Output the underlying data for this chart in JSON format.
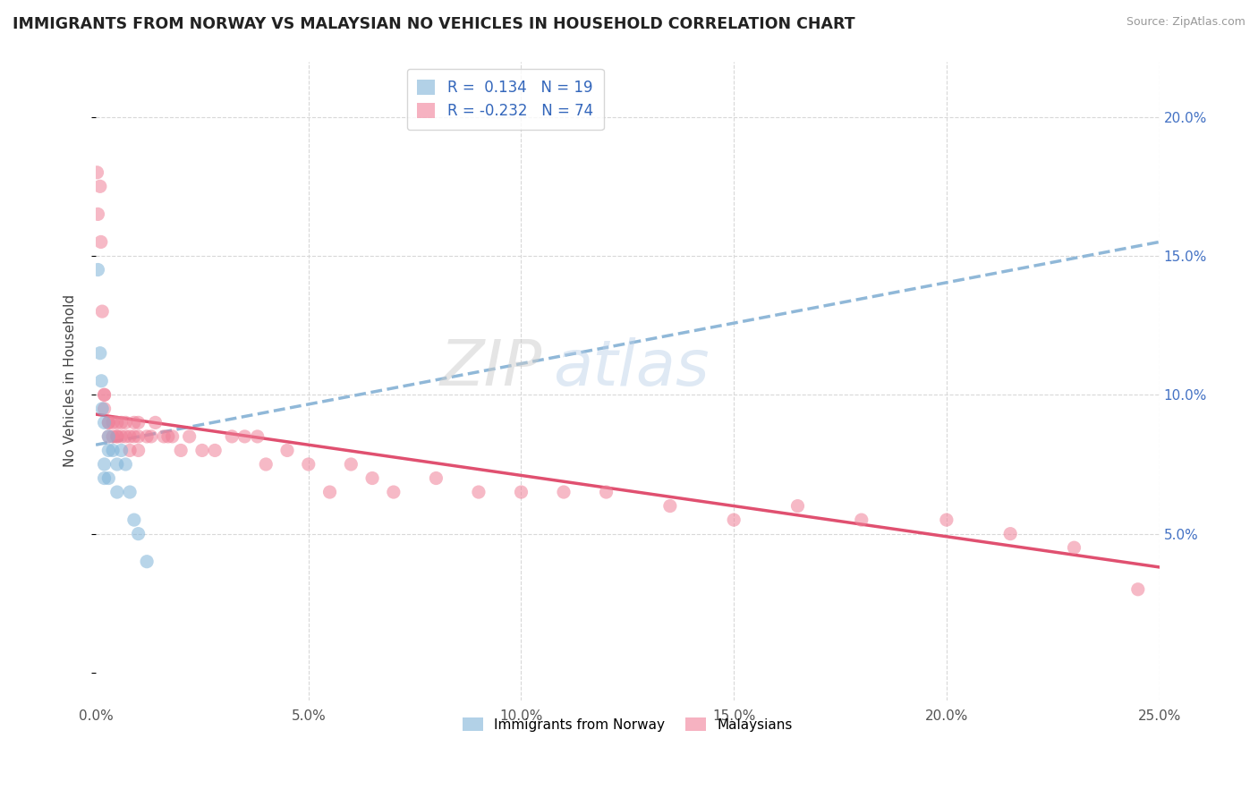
{
  "title": "IMMIGRANTS FROM NORWAY VS MALAYSIAN NO VEHICLES IN HOUSEHOLD CORRELATION CHART",
  "source": "Source: ZipAtlas.com",
  "ylabel": "No Vehicles in Household",
  "xlim": [
    0.0,
    0.25
  ],
  "ylim": [
    -0.01,
    0.22
  ],
  "x_ticks": [
    0.0,
    0.05,
    0.1,
    0.15,
    0.2,
    0.25
  ],
  "x_tick_labels": [
    "0.0%",
    "5.0%",
    "10.0%",
    "15.0%",
    "20.0%",
    "25.0%"
  ],
  "y_ticks_right": [
    0.05,
    0.1,
    0.15,
    0.2
  ],
  "y_tick_labels_right": [
    "5.0%",
    "10.0%",
    "15.0%",
    "20.0%"
  ],
  "norway_color": "#7fb3d8",
  "malaysia_color": "#f08098",
  "norway_trend_color": "#90b8d8",
  "malaysia_trend_color": "#e05070",
  "background_color": "#ffffff",
  "grid_color": "#d8d8d8",
  "norway_scatter_x": [
    0.0005,
    0.001,
    0.0013,
    0.0015,
    0.002,
    0.002,
    0.002,
    0.003,
    0.003,
    0.003,
    0.004,
    0.005,
    0.005,
    0.006,
    0.007,
    0.008,
    0.009,
    0.01,
    0.012
  ],
  "norway_scatter_y": [
    0.145,
    0.115,
    0.105,
    0.095,
    0.09,
    0.075,
    0.07,
    0.085,
    0.08,
    0.07,
    0.08,
    0.075,
    0.065,
    0.08,
    0.075,
    0.065,
    0.055,
    0.05,
    0.04
  ],
  "malaysia_scatter_x": [
    0.0003,
    0.0005,
    0.001,
    0.0012,
    0.0015,
    0.002,
    0.002,
    0.002,
    0.003,
    0.003,
    0.003,
    0.004,
    0.004,
    0.005,
    0.005,
    0.005,
    0.006,
    0.006,
    0.007,
    0.007,
    0.008,
    0.008,
    0.009,
    0.009,
    0.01,
    0.01,
    0.01,
    0.012,
    0.013,
    0.014,
    0.016,
    0.017,
    0.018,
    0.02,
    0.022,
    0.025,
    0.028,
    0.032,
    0.035,
    0.038,
    0.04,
    0.045,
    0.05,
    0.055,
    0.06,
    0.065,
    0.07,
    0.08,
    0.09,
    0.1,
    0.11,
    0.12,
    0.135,
    0.15,
    0.165,
    0.18,
    0.2,
    0.215,
    0.23,
    0.245
  ],
  "malaysia_scatter_y": [
    0.18,
    0.165,
    0.175,
    0.155,
    0.13,
    0.1,
    0.1,
    0.095,
    0.09,
    0.085,
    0.09,
    0.09,
    0.085,
    0.09,
    0.085,
    0.085,
    0.09,
    0.085,
    0.09,
    0.085,
    0.085,
    0.08,
    0.09,
    0.085,
    0.09,
    0.085,
    0.08,
    0.085,
    0.085,
    0.09,
    0.085,
    0.085,
    0.085,
    0.08,
    0.085,
    0.08,
    0.08,
    0.085,
    0.085,
    0.085,
    0.075,
    0.08,
    0.075,
    0.065,
    0.075,
    0.07,
    0.065,
    0.07,
    0.065,
    0.065,
    0.065,
    0.065,
    0.06,
    0.055,
    0.06,
    0.055,
    0.055,
    0.05,
    0.045,
    0.03
  ],
  "norway_trend_x0": 0.0,
  "norway_trend_y0": 0.082,
  "norway_trend_x1": 0.25,
  "norway_trend_y1": 0.155,
  "malaysia_trend_x0": 0.0,
  "malaysia_trend_y0": 0.093,
  "malaysia_trend_x1": 0.25,
  "malaysia_trend_y1": 0.038
}
